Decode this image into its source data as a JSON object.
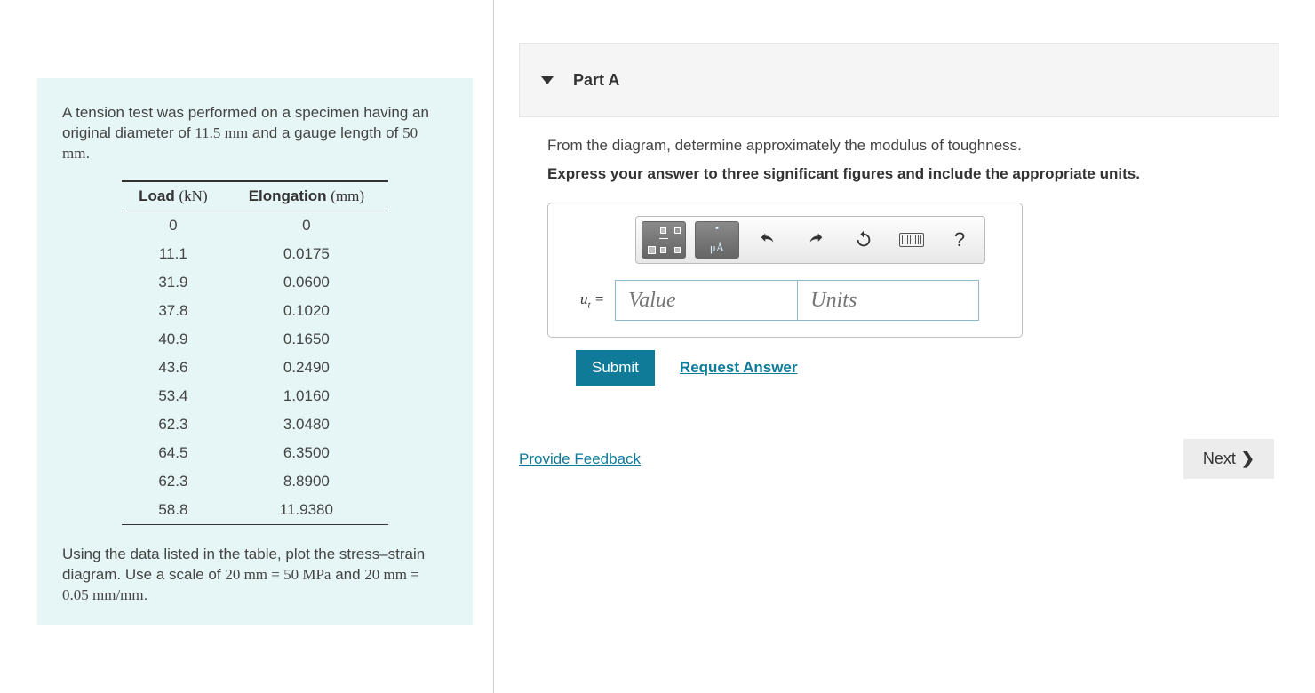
{
  "colors": {
    "panel_bg": "#e6f5f6",
    "link": "#0f7b99",
    "submit_bg": "#0f7b99",
    "border": "#c0c0c0",
    "input_border": "#8db8cd"
  },
  "problem": {
    "intro_pre": "A tension test was performed on a specimen having an original diameter of ",
    "diameter": "11.5 mm",
    "intro_mid": " and a gauge length of ",
    "gauge": "50 mm",
    "intro_post": ".",
    "footer_pre": "Using the data listed in the table, plot the stress–strain diagram. Use a scale of ",
    "scale1": "20 mm = 50 MPa",
    "footer_mid": " and ",
    "scale2": "20 mm = 0.05 mm/mm",
    "footer_post": "."
  },
  "table": {
    "col1_label": "Load",
    "col1_unit": "(kN)",
    "col2_label": "Elongation",
    "col2_unit": "(mm)",
    "rows": [
      [
        "0",
        "0"
      ],
      [
        "11.1",
        "0.0175"
      ],
      [
        "31.9",
        "0.0600"
      ],
      [
        "37.8",
        "0.1020"
      ],
      [
        "40.9",
        "0.1650"
      ],
      [
        "43.6",
        "0.2490"
      ],
      [
        "53.4",
        "1.0160"
      ],
      [
        "62.3",
        "3.0480"
      ],
      [
        "64.5",
        "6.3500"
      ],
      [
        "62.3",
        "8.8900"
      ],
      [
        "58.8",
        "11.9380"
      ]
    ]
  },
  "part": {
    "title": "Part A",
    "question": "From the diagram, determine approximately the modulus of toughness.",
    "instruction": "Express your answer to three significant figures and include the appropriate units."
  },
  "toolbar": {
    "templates_label": "",
    "units_label": "μÅ",
    "help_label": "?"
  },
  "answer": {
    "variable": "u",
    "subscript": "t",
    "equals": " =",
    "value_placeholder": "Value",
    "units_placeholder": "Units"
  },
  "buttons": {
    "submit": "Submit",
    "request_answer": "Request Answer",
    "provide_feedback": "Provide Feedback",
    "next": "Next"
  }
}
